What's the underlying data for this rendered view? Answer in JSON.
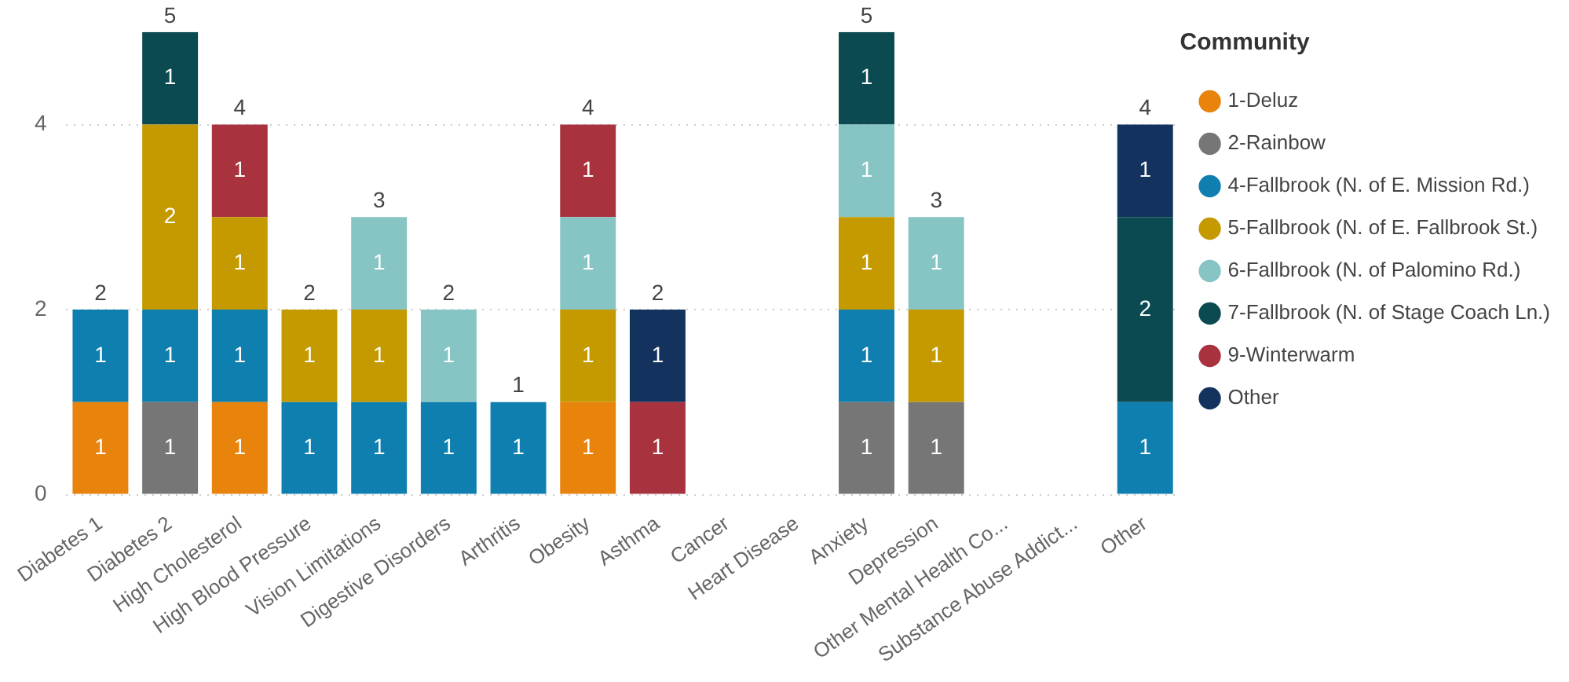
{
  "chart_data": {
    "type": "bar",
    "stacked": true,
    "legend_title": "Community",
    "legend": "right",
    "grid": "y",
    "data_labels": true,
    "categories": [
      "Diabetes 1",
      "Diabetes 2",
      "High Cholesterol",
      "High Blood Pressure",
      "Vision Limitations",
      "Digestive Disorders",
      "Arthritis",
      "Obesity",
      "Asthma",
      "Cancer",
      "Heart Disease",
      "Anxiety",
      "Depression",
      "Other Mental Health Co...",
      "Substance Abuse Addict...",
      "Other"
    ],
    "ylim": [
      0,
      5
    ],
    "yticks": [
      0,
      2,
      4
    ],
    "series": [
      {
        "name": "1-Deluz",
        "color": "#e8830c",
        "values": [
          1,
          null,
          1,
          null,
          null,
          null,
          null,
          1,
          null,
          null,
          null,
          null,
          null,
          null,
          null,
          null
        ]
      },
      {
        "name": "2-Rainbow",
        "color": "#767676",
        "values": [
          null,
          1,
          null,
          null,
          null,
          null,
          null,
          null,
          null,
          null,
          null,
          1,
          1,
          null,
          null,
          null
        ]
      },
      {
        "name": "4-Fallbrook (N. of E. Mission Rd.)",
        "color": "#0f7fb0",
        "values": [
          1,
          1,
          1,
          1,
          1,
          1,
          1,
          null,
          null,
          null,
          null,
          1,
          null,
          null,
          null,
          1
        ]
      },
      {
        "name": "5-Fallbrook (N. of E. Fallbrook St.)",
        "color": "#c49a00",
        "values": [
          null,
          2,
          1,
          1,
          1,
          null,
          null,
          1,
          null,
          null,
          null,
          1,
          1,
          null,
          null,
          null
        ]
      },
      {
        "name": "6-Fallbrook (N. of Palomino Rd.)",
        "color": "#86c5c3",
        "values": [
          null,
          null,
          null,
          null,
          1,
          1,
          null,
          1,
          null,
          null,
          null,
          1,
          1,
          null,
          null,
          null
        ]
      },
      {
        "name": "7-Fallbrook (N. of Stage Coach Ln.)",
        "color": "#0b4a51",
        "values": [
          null,
          1,
          null,
          null,
          null,
          null,
          null,
          null,
          null,
          null,
          null,
          1,
          null,
          null,
          null,
          2
        ]
      },
      {
        "name": "9-Winterwarm",
        "color": "#a8333f",
        "values": [
          null,
          null,
          1,
          null,
          null,
          null,
          null,
          1,
          1,
          null,
          null,
          null,
          null,
          null,
          null,
          null
        ]
      },
      {
        "name": "Other",
        "color": "#13335e",
        "values": [
          null,
          null,
          null,
          null,
          null,
          null,
          null,
          null,
          1,
          null,
          null,
          null,
          null,
          null,
          null,
          1
        ]
      }
    ],
    "totals": [
      "2",
      "5",
      "4",
      "2",
      "3",
      "2",
      "1",
      "4",
      "2",
      null,
      null,
      "5",
      "3",
      null,
      null,
      "4"
    ]
  }
}
